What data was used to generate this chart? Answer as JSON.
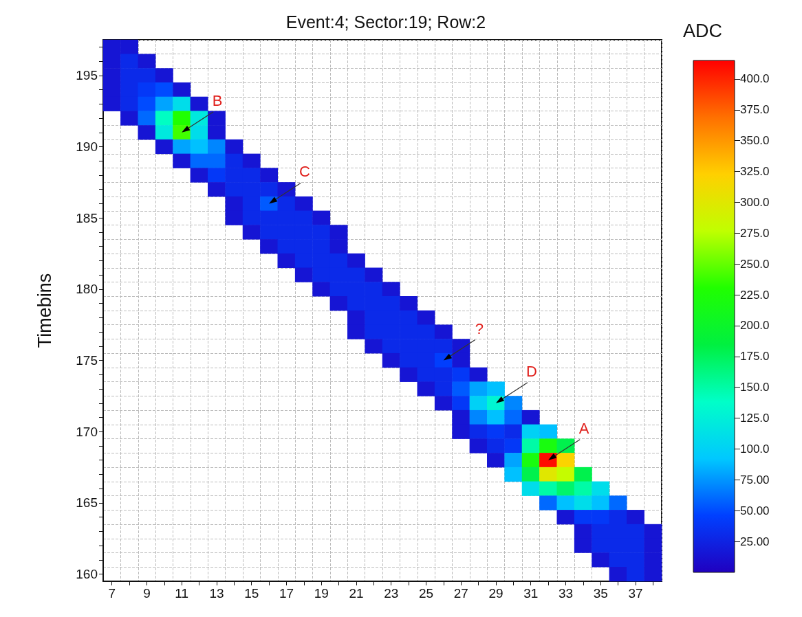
{
  "chart_data": {
    "type": "heatmap",
    "title": "Event:4; Sector:19; Row:2",
    "ylabel": "Timebins",
    "clabel": "ADC",
    "categories": [
      "7",
      null,
      "9",
      null,
      "11",
      null,
      "13",
      null,
      "15",
      null,
      "17",
      null,
      "19",
      null,
      "21",
      null,
      "23",
      null,
      "25",
      null,
      "27",
      null,
      "29",
      null,
      "31",
      null,
      "33",
      null,
      "35",
      null,
      "37",
      null
    ],
    "y_categories": [
      null,
      null,
      "195",
      null,
      null,
      null,
      null,
      "190",
      null,
      null,
      null,
      null,
      "185",
      null,
      null,
      null,
      null,
      "180",
      null,
      null,
      null,
      null,
      "175",
      null,
      null,
      null,
      null,
      "170",
      null,
      null,
      null,
      null,
      "165",
      null,
      null,
      null,
      null,
      "160"
    ],
    "cells": [
      [
        15,
        15,
        null,
        null,
        null,
        null,
        null,
        null,
        null,
        null,
        null,
        null,
        null,
        null,
        null,
        null,
        null,
        null,
        null,
        null,
        null,
        null,
        null,
        null,
        null,
        null,
        null,
        null,
        null,
        null,
        null,
        null
      ],
      [
        15,
        30,
        15,
        null,
        null,
        null,
        null,
        null,
        null,
        null,
        null,
        null,
        null,
        null,
        null,
        null,
        null,
        null,
        null,
        null,
        null,
        null,
        null,
        null,
        null,
        null,
        null,
        null,
        null,
        null,
        null,
        null
      ],
      [
        15,
        30,
        30,
        15,
        null,
        null,
        null,
        null,
        null,
        null,
        null,
        null,
        null,
        null,
        null,
        null,
        null,
        null,
        null,
        null,
        null,
        null,
        null,
        null,
        null,
        null,
        null,
        null,
        null,
        null,
        null,
        null
      ],
      [
        15,
        30,
        40,
        50,
        15,
        null,
        null,
        null,
        null,
        null,
        null,
        null,
        null,
        null,
        null,
        null,
        null,
        null,
        null,
        null,
        null,
        null,
        null,
        null,
        null,
        null,
        null,
        null,
        null,
        null,
        null,
        null
      ],
      [
        15,
        30,
        50,
        80,
        110,
        15,
        null,
        null,
        null,
        null,
        null,
        null,
        null,
        null,
        null,
        null,
        null,
        null,
        null,
        null,
        null,
        null,
        null,
        null,
        null,
        null,
        null,
        null,
        null,
        null,
        null,
        null
      ],
      [
        null,
        15,
        60,
        140,
        230,
        120,
        15,
        null,
        null,
        null,
        null,
        null,
        null,
        null,
        null,
        null,
        null,
        null,
        null,
        null,
        null,
        null,
        null,
        null,
        null,
        null,
        null,
        null,
        null,
        null,
        null,
        null
      ],
      [
        null,
        null,
        15,
        120,
        240,
        110,
        15,
        null,
        null,
        null,
        null,
        null,
        null,
        null,
        null,
        null,
        null,
        null,
        null,
        null,
        null,
        null,
        null,
        null,
        null,
        null,
        null,
        null,
        null,
        null,
        null,
        null
      ],
      [
        null,
        null,
        null,
        15,
        80,
        90,
        70,
        15,
        null,
        null,
        null,
        null,
        null,
        null,
        null,
        null,
        null,
        null,
        null,
        null,
        null,
        null,
        null,
        null,
        null,
        null,
        null,
        null,
        null,
        null,
        null,
        null
      ],
      [
        null,
        null,
        null,
        null,
        15,
        60,
        60,
        30,
        15,
        null,
        null,
        null,
        null,
        null,
        null,
        null,
        null,
        null,
        null,
        null,
        null,
        null,
        null,
        null,
        null,
        null,
        null,
        null,
        null,
        null,
        null,
        null
      ],
      [
        null,
        null,
        null,
        null,
        null,
        15,
        40,
        30,
        30,
        15,
        null,
        null,
        null,
        null,
        null,
        null,
        null,
        null,
        null,
        null,
        null,
        null,
        null,
        null,
        null,
        null,
        null,
        null,
        null,
        null,
        null,
        null
      ],
      [
        null,
        null,
        null,
        null,
        null,
        null,
        15,
        30,
        30,
        30,
        15,
        null,
        null,
        null,
        null,
        null,
        null,
        null,
        null,
        null,
        null,
        null,
        null,
        null,
        null,
        null,
        null,
        null,
        null,
        null,
        null,
        null
      ],
      [
        null,
        null,
        null,
        null,
        null,
        null,
        null,
        15,
        30,
        55,
        30,
        15,
        null,
        null,
        null,
        null,
        null,
        null,
        null,
        null,
        null,
        null,
        null,
        null,
        null,
        null,
        null,
        null,
        null,
        null,
        null,
        null
      ],
      [
        null,
        null,
        null,
        null,
        null,
        null,
        null,
        15,
        30,
        30,
        30,
        30,
        15,
        null,
        null,
        null,
        null,
        null,
        null,
        null,
        null,
        null,
        null,
        null,
        null,
        null,
        null,
        null,
        null,
        null,
        null,
        null
      ],
      [
        null,
        null,
        null,
        null,
        null,
        null,
        null,
        null,
        15,
        30,
        30,
        30,
        30,
        15,
        null,
        null,
        null,
        null,
        null,
        null,
        null,
        null,
        null,
        null,
        null,
        null,
        null,
        null,
        null,
        null,
        null,
        null
      ],
      [
        null,
        null,
        null,
        null,
        null,
        null,
        null,
        null,
        null,
        15,
        30,
        30,
        30,
        15,
        null,
        null,
        null,
        null,
        null,
        null,
        null,
        null,
        null,
        null,
        null,
        null,
        null,
        null,
        null,
        null,
        null,
        null
      ],
      [
        null,
        null,
        null,
        null,
        null,
        null,
        null,
        null,
        null,
        null,
        15,
        30,
        30,
        30,
        15,
        null,
        null,
        null,
        null,
        null,
        null,
        null,
        null,
        null,
        null,
        null,
        null,
        null,
        null,
        null,
        null,
        null
      ],
      [
        null,
        null,
        null,
        null,
        null,
        null,
        null,
        null,
        null,
        null,
        null,
        15,
        30,
        30,
        30,
        15,
        null,
        null,
        null,
        null,
        null,
        null,
        null,
        null,
        null,
        null,
        null,
        null,
        null,
        null,
        null,
        null
      ],
      [
        null,
        null,
        null,
        null,
        null,
        null,
        null,
        null,
        null,
        null,
        null,
        null,
        15,
        30,
        30,
        30,
        15,
        null,
        null,
        null,
        null,
        null,
        null,
        null,
        null,
        null,
        null,
        null,
        null,
        null,
        null,
        null
      ],
      [
        null,
        null,
        null,
        null,
        null,
        null,
        null,
        null,
        null,
        null,
        null,
        null,
        null,
        15,
        30,
        30,
        30,
        15,
        null,
        null,
        null,
        null,
        null,
        null,
        null,
        null,
        null,
        null,
        null,
        null,
        null,
        null
      ],
      [
        null,
        null,
        null,
        null,
        null,
        null,
        null,
        null,
        null,
        null,
        null,
        null,
        null,
        null,
        15,
        30,
        30,
        30,
        15,
        null,
        null,
        null,
        null,
        null,
        null,
        null,
        null,
        null,
        null,
        null,
        null,
        null
      ],
      [
        null,
        null,
        null,
        null,
        null,
        null,
        null,
        null,
        null,
        null,
        null,
        null,
        null,
        null,
        15,
        30,
        30,
        30,
        30,
        15,
        null,
        null,
        null,
        null,
        null,
        null,
        null,
        null,
        null,
        null,
        null,
        null
      ],
      [
        null,
        null,
        null,
        null,
        null,
        null,
        null,
        null,
        null,
        null,
        null,
        null,
        null,
        null,
        null,
        15,
        30,
        30,
        30,
        30,
        15,
        null,
        null,
        null,
        null,
        null,
        null,
        null,
        null,
        null,
        null,
        null
      ],
      [
        null,
        null,
        null,
        null,
        null,
        null,
        null,
        null,
        null,
        null,
        null,
        null,
        null,
        null,
        null,
        null,
        15,
        30,
        30,
        45,
        15,
        null,
        null,
        null,
        null,
        null,
        null,
        null,
        null,
        null,
        null,
        null
      ],
      [
        null,
        null,
        null,
        null,
        null,
        null,
        null,
        null,
        null,
        null,
        null,
        null,
        null,
        null,
        null,
        null,
        null,
        15,
        30,
        30,
        40,
        15,
        null,
        null,
        null,
        null,
        null,
        null,
        null,
        null,
        null,
        null
      ],
      [
        null,
        null,
        null,
        null,
        null,
        null,
        null,
        null,
        null,
        null,
        null,
        null,
        null,
        null,
        null,
        null,
        null,
        null,
        15,
        30,
        55,
        80,
        90,
        null,
        null,
        null,
        null,
        null,
        null,
        null,
        null,
        null
      ],
      [
        null,
        null,
        null,
        null,
        null,
        null,
        null,
        null,
        null,
        null,
        null,
        null,
        null,
        null,
        null,
        null,
        null,
        null,
        null,
        15,
        40,
        100,
        130,
        70,
        null,
        null,
        null,
        null,
        null,
        null,
        null,
        null
      ],
      [
        null,
        null,
        null,
        null,
        null,
        null,
        null,
        null,
        null,
        null,
        null,
        null,
        null,
        null,
        null,
        null,
        null,
        null,
        null,
        null,
        15,
        70,
        90,
        60,
        15,
        null,
        null,
        null,
        null,
        null,
        null,
        null
      ],
      [
        null,
        null,
        null,
        null,
        null,
        null,
        null,
        null,
        null,
        null,
        null,
        null,
        null,
        null,
        null,
        null,
        null,
        null,
        null,
        null,
        15,
        30,
        40,
        30,
        100,
        90,
        null,
        null,
        null,
        null,
        null,
        null
      ],
      [
        null,
        null,
        null,
        null,
        null,
        null,
        null,
        null,
        null,
        null,
        null,
        null,
        null,
        null,
        null,
        null,
        null,
        null,
        null,
        null,
        null,
        15,
        30,
        40,
        150,
        220,
        180,
        null,
        null,
        null,
        null,
        null
      ],
      [
        null,
        null,
        null,
        null,
        null,
        null,
        null,
        null,
        null,
        null,
        null,
        null,
        null,
        null,
        null,
        null,
        null,
        null,
        null,
        null,
        null,
        null,
        15,
        80,
        220,
        410,
        320,
        null,
        null,
        null,
        null,
        null
      ],
      [
        null,
        null,
        null,
        null,
        null,
        null,
        null,
        null,
        null,
        null,
        null,
        null,
        null,
        null,
        null,
        null,
        null,
        null,
        null,
        null,
        null,
        null,
        null,
        90,
        180,
        300,
        280,
        180,
        null,
        null,
        null,
        null
      ],
      [
        null,
        null,
        null,
        null,
        null,
        null,
        null,
        null,
        null,
        null,
        null,
        null,
        null,
        null,
        null,
        null,
        null,
        null,
        null,
        null,
        null,
        null,
        null,
        null,
        110,
        150,
        170,
        150,
        110,
        null,
        null,
        null
      ],
      [
        null,
        null,
        null,
        null,
        null,
        null,
        null,
        null,
        null,
        null,
        null,
        null,
        null,
        null,
        null,
        null,
        null,
        null,
        null,
        null,
        null,
        null,
        null,
        null,
        null,
        60,
        90,
        110,
        90,
        60,
        null,
        null
      ],
      [
        null,
        null,
        null,
        null,
        null,
        null,
        null,
        null,
        null,
        null,
        null,
        null,
        null,
        null,
        null,
        null,
        null,
        null,
        null,
        null,
        null,
        null,
        null,
        null,
        null,
        null,
        15,
        40,
        40,
        30,
        15,
        null
      ],
      [
        null,
        null,
        null,
        null,
        null,
        null,
        null,
        null,
        null,
        null,
        null,
        null,
        null,
        null,
        null,
        null,
        null,
        null,
        null,
        null,
        null,
        null,
        null,
        null,
        null,
        null,
        null,
        15,
        30,
        30,
        30,
        15
      ],
      [
        null,
        null,
        null,
        null,
        null,
        null,
        null,
        null,
        null,
        null,
        null,
        null,
        null,
        null,
        null,
        null,
        null,
        null,
        null,
        null,
        null,
        null,
        null,
        null,
        null,
        null,
        null,
        15,
        30,
        30,
        30,
        15
      ],
      [
        null,
        null,
        null,
        null,
        null,
        null,
        null,
        null,
        null,
        null,
        null,
        null,
        null,
        null,
        null,
        null,
        null,
        null,
        null,
        null,
        null,
        null,
        null,
        null,
        null,
        null,
        null,
        null,
        15,
        30,
        30,
        15
      ],
      [
        null,
        null,
        null,
        null,
        null,
        null,
        null,
        null,
        null,
        null,
        null,
        null,
        null,
        null,
        null,
        null,
        null,
        null,
        null,
        null,
        null,
        null,
        null,
        null,
        null,
        null,
        null,
        null,
        null,
        15,
        30,
        15
      ]
    ],
    "clim": [
      0,
      415
    ],
    "cticks": [
      {
        "value": 25,
        "label": "25.00"
      },
      {
        "value": 50,
        "label": "50.00"
      },
      {
        "value": 75,
        "label": "75.00"
      },
      {
        "value": 100,
        "label": "100.0"
      },
      {
        "value": 125,
        "label": "125.0"
      },
      {
        "value": 150,
        "label": "150.0"
      },
      {
        "value": 175,
        "label": "175.0"
      },
      {
        "value": 200,
        "label": "200.0"
      },
      {
        "value": 225,
        "label": "225.0"
      },
      {
        "value": 250,
        "label": "250.0"
      },
      {
        "value": 275,
        "label": "275.0"
      },
      {
        "value": 300,
        "label": "300.0"
      },
      {
        "value": 325,
        "label": "325.0"
      },
      {
        "value": 350,
        "label": "350.0"
      },
      {
        "value": 375,
        "label": "375.0"
      },
      {
        "value": 400,
        "label": "400.0"
      }
    ],
    "grid": true,
    "annotations": [
      "B",
      "C",
      "?",
      "D",
      "A"
    ]
  }
}
